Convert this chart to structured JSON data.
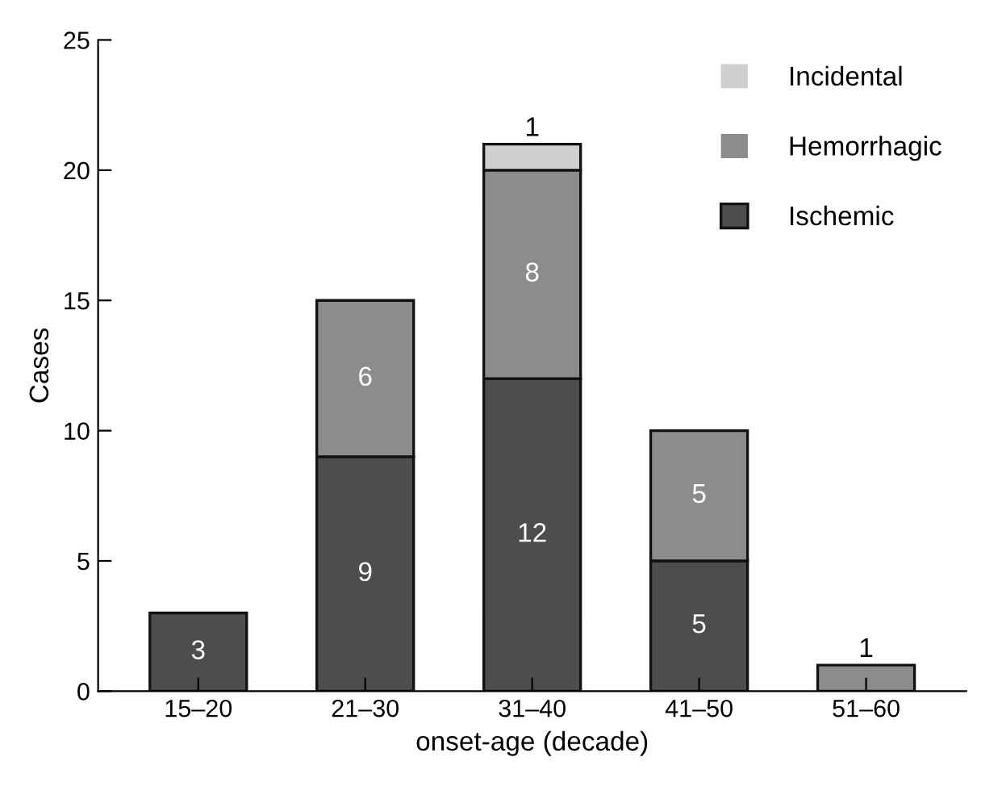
{
  "chart_data": {
    "type": "bar",
    "stacked": true,
    "xlabel": "onset-age (decade)",
    "ylabel": "Cases",
    "categories": [
      "15–20",
      "21–30",
      "31–40",
      "41–50",
      "51–60"
    ],
    "series": [
      {
        "name": "Ischemic",
        "color": "#4d4d4d",
        "values": [
          3,
          9,
          12,
          5,
          0
        ],
        "value_labels": [
          "3",
          "9",
          "12",
          "5",
          null
        ]
      },
      {
        "name": "Hemorrhagic",
        "color": "#8c8c8c",
        "values": [
          0,
          6,
          8,
          5,
          1
        ],
        "value_labels": [
          null,
          "6",
          "8",
          "5",
          "1"
        ]
      },
      {
        "name": "Incidental",
        "color": "#cfcfcf",
        "values": [
          0,
          0,
          1,
          0,
          0
        ],
        "value_labels": [
          null,
          null,
          "1",
          null,
          null
        ]
      }
    ],
    "ylim": [
      0,
      25
    ],
    "yticks": [
      0,
      5,
      10,
      15,
      20,
      25
    ],
    "grid": false,
    "legend": "top right"
  }
}
